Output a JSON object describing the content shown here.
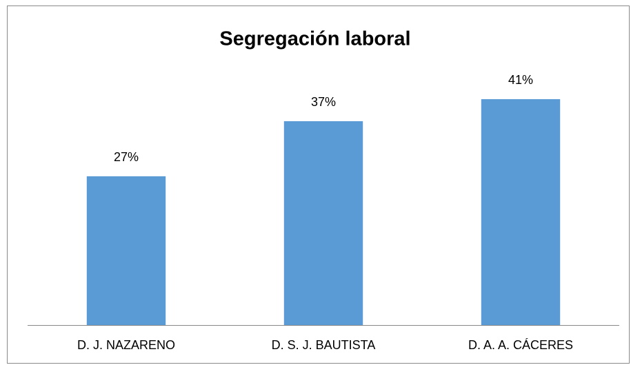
{
  "chart_data": {
    "type": "bar",
    "title": "Segregación laboral",
    "categories": [
      "D. J. NAZARENO",
      "D. S. J. BAUTISTA",
      "D. A. A. CÁCERES"
    ],
    "values": [
      27,
      37,
      41
    ],
    "value_labels": [
      "27%",
      "37%",
      "41%"
    ],
    "color": "#5b9bd5",
    "ylim": [
      0,
      45
    ]
  }
}
